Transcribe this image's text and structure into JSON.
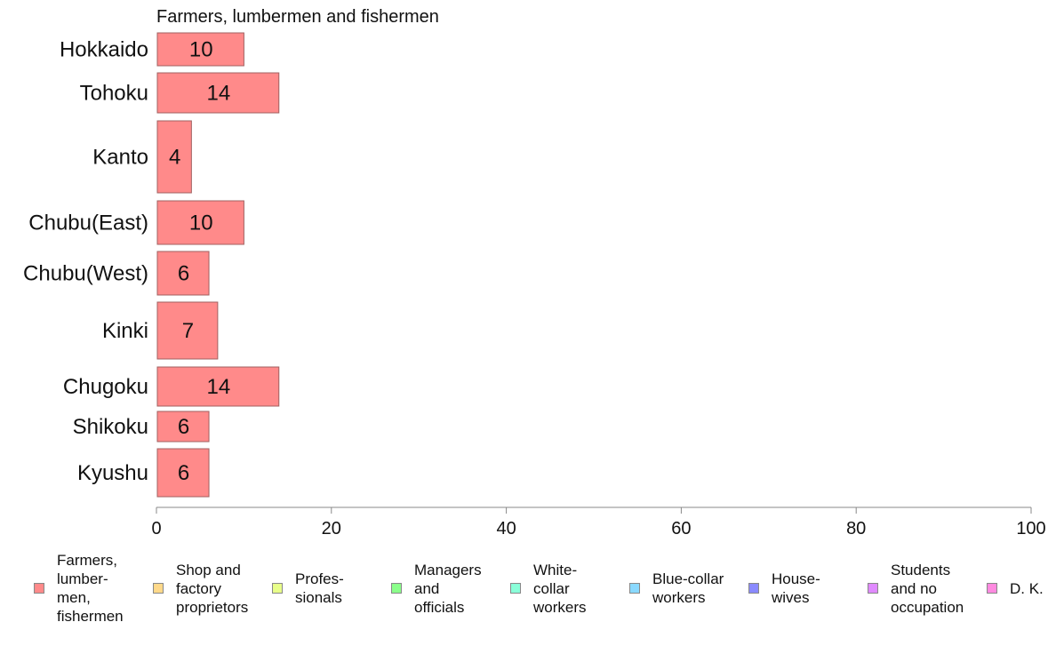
{
  "chart_data": {
    "type": "bar",
    "orientation": "horizontal",
    "title": "Farmers, lumbermen and fishermen",
    "categories": [
      "Hokkaido",
      "Tohoku",
      "Kanto",
      "Chubu(East)",
      "Chubu(West)",
      "Kinki",
      "Chugoku",
      "Shikoku",
      "Kyushu"
    ],
    "series": [
      {
        "name": "Farmers, lumber-\nmen,\nfishermen",
        "color": "#ff8a8a",
        "values": [
          10,
          14,
          4,
          10,
          6,
          7,
          14,
          6,
          6
        ]
      }
    ],
    "xlim": [
      0,
      100
    ],
    "xticks": [
      "0",
      "20",
      "40",
      "60",
      "80",
      "100"
    ],
    "grid": false,
    "legend_position": "bottom"
  },
  "legend": [
    {
      "label": "Farmers,\nlumber-\nmen,\nfishermen",
      "color": "#ff8a8a"
    },
    {
      "label": "Shop and\nfactory\nproprietors",
      "color": "#ffd98a"
    },
    {
      "label": "Profes-\nsionals",
      "color": "#e8ff8a"
    },
    {
      "label": "Managers\nand\nofficials",
      "color": "#8aff8a"
    },
    {
      "label": "White-\ncollar\nworkers",
      "color": "#8affd9"
    },
    {
      "label": "Blue-collar\nworkers",
      "color": "#8ad9ff"
    },
    {
      "label": "House-\nwives",
      "color": "#8a8aff"
    },
    {
      "label": "Students\nand no\noccupation",
      "color": "#e08aff"
    },
    {
      "label": "D. K.",
      "color": "#ff8ae0"
    }
  ]
}
